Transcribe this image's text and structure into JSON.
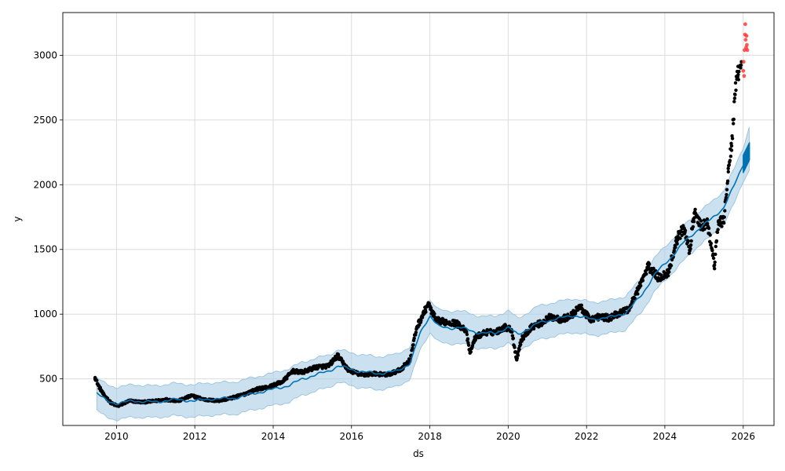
{
  "chart_data": {
    "type": "scatter",
    "xlabel": "ds",
    "ylabel": "y",
    "xlim": [
      "2008-08-18",
      "2026-10-15"
    ],
    "ylim": [
      140,
      3330
    ],
    "x_ticks": [
      "2010",
      "2012",
      "2014",
      "2016",
      "2018",
      "2020",
      "2022",
      "2024",
      "2026"
    ],
    "y_ticks": [
      500,
      1000,
      1500,
      2000,
      2500,
      3000
    ],
    "grid": true,
    "colors": {
      "observed": "#000000",
      "recent": "#ff3030",
      "forecast_line": "#0072b2",
      "interval": "#a8cde6"
    },
    "forecast": {
      "date": [
        "2009-07-01",
        "2009-10-01",
        "2010-01-01",
        "2010-06-01",
        "2011-01-01",
        "2011-06-01",
        "2012-01-01",
        "2012-06-01",
        "2013-01-01",
        "2013-06-01",
        "2014-01-01",
        "2014-06-01",
        "2014-10-01",
        "2015-06-01",
        "2015-09-01",
        "2016-03-01",
        "2016-09-01",
        "2017-03-01",
        "2017-07-01",
        "2017-10-01",
        "2018-01-01",
        "2018-04-01",
        "2018-07-01",
        "2018-10-01",
        "2019-03-01",
        "2019-09-01",
        "2020-01-01",
        "2020-04-01",
        "2020-10-01",
        "2021-03-01",
        "2021-09-01",
        "2022-03-01",
        "2022-09-01",
        "2023-01-01",
        "2023-06-01",
        "2023-10-01",
        "2024-03-01",
        "2024-07-01",
        "2024-11-01",
        "2025-03-01",
        "2025-07-01",
        "2025-10-01",
        "2026-01-01",
        "2026-03-01"
      ],
      "yhat": [
        390,
        330,
        310,
        330,
        320,
        340,
        330,
        345,
        350,
        380,
        420,
        450,
        500,
        560,
        600,
        560,
        540,
        560,
        620,
        850,
        990,
        900,
        890,
        900,
        860,
        850,
        900,
        840,
        930,
        960,
        990,
        960,
        980,
        1010,
        1150,
        1310,
        1440,
        1560,
        1650,
        1730,
        1820,
        1980,
        2160,
        2260
      ],
      "lower": [
        260,
        200,
        185,
        205,
        200,
        215,
        205,
        220,
        225,
        255,
        295,
        320,
        375,
        435,
        475,
        435,
        415,
        440,
        500,
        720,
        860,
        780,
        770,
        775,
        740,
        730,
        780,
        720,
        800,
        830,
        860,
        835,
        855,
        880,
        1020,
        1180,
        1310,
        1420,
        1520,
        1600,
        1690,
        1840,
        2030,
        2110
      ],
      "upper": [
        510,
        455,
        435,
        455,
        445,
        465,
        455,
        470,
        475,
        505,
        545,
        580,
        630,
        685,
        725,
        690,
        670,
        690,
        750,
        980,
        1110,
        1030,
        1020,
        1030,
        990,
        980,
        1030,
        965,
        1060,
        1090,
        1120,
        1090,
        1110,
        1140,
        1280,
        1440,
        1570,
        1690,
        1780,
        1860,
        1950,
        2110,
        2290,
        2450
      ]
    },
    "series": [
      {
        "role": "observed",
        "date": [
          "2009-06-15",
          "2009-07-15",
          "2009-09-01",
          "2009-11-15",
          "2010-01-15",
          "2010-05-01",
          "2010-09-01",
          "2011-01-01",
          "2011-04-01",
          "2011-08-01",
          "2011-12-01",
          "2012-04-01",
          "2012-08-01",
          "2012-12-01",
          "2013-04-01",
          "2013-08-01",
          "2013-12-01",
          "2014-04-01",
          "2014-07-01",
          "2014-10-01",
          "2015-02-01",
          "2015-06-01",
          "2015-08-25",
          "2015-12-01",
          "2016-04-01",
          "2016-08-01",
          "2016-12-01",
          "2017-04-01",
          "2017-07-01",
          "2017-09-01",
          "2017-11-01",
          "2017-12-15",
          "2018-03-01",
          "2018-06-01",
          "2018-09-01",
          "2018-12-01",
          "2019-01-10",
          "2019-03-01",
          "2019-06-01",
          "2019-09-01",
          "2019-12-01",
          "2020-02-01",
          "2020-03-20",
          "2020-05-01",
          "2020-08-01",
          "2020-11-01",
          "2021-02-01",
          "2021-05-01",
          "2021-08-01",
          "2021-11-01",
          "2022-02-01",
          "2022-05-01",
          "2022-08-01",
          "2022-11-01",
          "2023-02-01",
          "2023-05-01",
          "2023-08-01",
          "2023-11-01",
          "2024-02-01",
          "2024-05-01",
          "2024-07-01",
          "2024-08-20",
          "2024-10-01",
          "2024-12-01",
          "2025-02-01",
          "2025-04-08",
          "2025-05-15",
          "2025-07-01",
          "2025-08-15",
          "2025-09-15",
          "2025-10-15",
          "2025-11-15",
          "2025-12-15"
        ],
        "values": [
          510,
          450,
          380,
          310,
          290,
          330,
          320,
          330,
          340,
          330,
          370,
          340,
          330,
          350,
          380,
          420,
          440,
          480,
          560,
          550,
          590,
          600,
          680,
          570,
          530,
          540,
          530,
          570,
          650,
          900,
          1000,
          1080,
          950,
          940,
          930,
          880,
          700,
          820,
          860,
          860,
          900,
          880,
          650,
          800,
          900,
          930,
          980,
          960,
          980,
          1060,
          960,
          980,
          970,
          1010,
          1040,
          1200,
          1370,
          1280,
          1320,
          1600,
          1660,
          1490,
          1780,
          1680,
          1700,
          1380,
          1720,
          1710,
          2100,
          2300,
          2700,
          2850,
          2950
        ]
      },
      {
        "role": "recent",
        "date": [
          "2026-01-01",
          "2026-01-05",
          "2026-01-09",
          "2026-01-13",
          "2026-01-17",
          "2026-01-20",
          "2026-01-24",
          "2026-01-28",
          "2026-02-01",
          "2026-02-04",
          "2026-02-08"
        ],
        "values": [
          2880,
          2950,
          2840,
          3040,
          3160,
          3240,
          3120,
          3060,
          3150,
          3080,
          3040
        ]
      }
    ]
  }
}
